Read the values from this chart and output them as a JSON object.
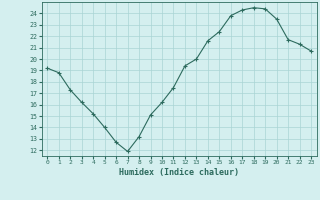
{
  "x": [
    0,
    1,
    2,
    3,
    4,
    5,
    6,
    7,
    8,
    9,
    10,
    11,
    12,
    13,
    14,
    15,
    16,
    17,
    18,
    19,
    20,
    21,
    22,
    23
  ],
  "y": [
    19.2,
    18.8,
    17.3,
    16.2,
    15.2,
    14.0,
    12.7,
    11.9,
    13.2,
    15.1,
    16.2,
    17.5,
    19.4,
    20.0,
    21.6,
    22.4,
    23.8,
    24.3,
    24.5,
    24.4,
    23.5,
    21.7,
    21.3,
    20.7
  ],
  "xlabel": "Humidex (Indice chaleur)",
  "xticks": [
    0,
    1,
    2,
    3,
    4,
    5,
    6,
    7,
    8,
    9,
    10,
    11,
    12,
    13,
    14,
    15,
    16,
    17,
    18,
    19,
    20,
    21,
    22,
    23
  ],
  "yticks": [
    12,
    13,
    14,
    15,
    16,
    17,
    18,
    19,
    20,
    21,
    22,
    23,
    24
  ],
  "ylim": [
    11.5,
    25.0
  ],
  "xlim": [
    -0.5,
    23.5
  ],
  "line_color": "#2d6b5e",
  "bg_color": "#d4efef",
  "grid_color": "#aad4d4"
}
